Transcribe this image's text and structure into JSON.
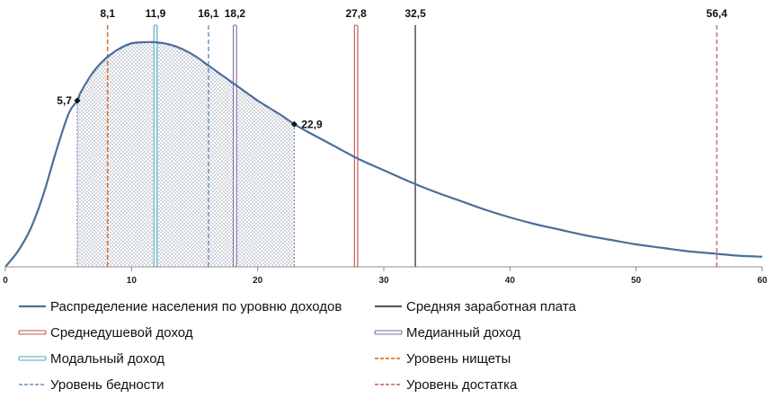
{
  "chart_data": {
    "type": "line",
    "title": "",
    "xlabel": "",
    "ylabel": "",
    "xlim": [
      0,
      60
    ],
    "x_ticks": [
      0,
      10,
      20,
      30,
      40,
      50,
      60
    ],
    "grid": false,
    "legend_placement": "bottom",
    "distribution": {
      "name": "Распределение населения по уровню доходов",
      "color": "#4a6f9b",
      "x": [
        0,
        1,
        2,
        3,
        4,
        5,
        5.7,
        6,
        7,
        8,
        9,
        10,
        11,
        11.9,
        13,
        14,
        15,
        16,
        17,
        18,
        19,
        20,
        21,
        22,
        22.9,
        24,
        26,
        28,
        30,
        32,
        34,
        36,
        38,
        40,
        42,
        44,
        46,
        48,
        50,
        52,
        54,
        56,
        58,
        60
      ],
      "y": [
        0,
        0.07,
        0.17,
        0.32,
        0.51,
        0.68,
        0.74,
        0.78,
        0.87,
        0.93,
        0.97,
        0.995,
        1.0,
        1.0,
        0.99,
        0.97,
        0.94,
        0.9,
        0.86,
        0.82,
        0.78,
        0.74,
        0.705,
        0.67,
        0.635,
        0.6,
        0.54,
        0.48,
        0.43,
        0.38,
        0.335,
        0.295,
        0.255,
        0.22,
        0.19,
        0.165,
        0.14,
        0.12,
        0.1,
        0.085,
        0.07,
        0.06,
        0.05,
        0.045
      ],
      "shaded_range": [
        5.7,
        22.9
      ],
      "marked_points": [
        {
          "x": 5.7,
          "label": "5,7"
        },
        {
          "x": 22.9,
          "label": "22,9"
        }
      ]
    },
    "markers": [
      {
        "name": "Уровень нищеты",
        "value": 8.1,
        "label": "8,1",
        "style": "dashed",
        "color": "#d9742b"
      },
      {
        "name": "Модальный доход",
        "value": 11.9,
        "label": "11,9",
        "style": "double",
        "color": "#4aa8c0"
      },
      {
        "name": "Уровень бедности",
        "value": 16.1,
        "label": "16,1",
        "style": "dashed",
        "color": "#7c9cc4"
      },
      {
        "name": "Медианный доход",
        "value": 18.2,
        "label": "18,2",
        "style": "double",
        "color": "#8064a2"
      },
      {
        "name": "Среднедушевой доход",
        "value": 27.8,
        "label": "27,8",
        "style": "double",
        "color": "#c0504d"
      },
      {
        "name": "Средняя заработная плата",
        "value": 32.5,
        "label": "32,5",
        "style": "solid",
        "color": "#595959"
      },
      {
        "name": "Уровень достатка",
        "value": 56.4,
        "label": "56,4",
        "style": "dashed",
        "color": "#c87870"
      }
    ],
    "legend": [
      {
        "name": "Распределение населения по уровню доходов",
        "style": "solid",
        "color": "#4a6f9b"
      },
      {
        "name": "Средняя заработная плата",
        "style": "solid",
        "color": "#595959"
      },
      {
        "name": "Среднедушевой доход",
        "style": "double",
        "color": "#c0504d"
      },
      {
        "name": "Медианный доход",
        "style": "double",
        "color": "#8064a2"
      },
      {
        "name": "Модальный доход",
        "style": "double",
        "color": "#4aa8c0"
      },
      {
        "name": "Уровень нищеты",
        "style": "dashed",
        "color": "#d9742b"
      },
      {
        "name": "Уровень бедности",
        "style": "dashed",
        "color": "#7c9cc4"
      },
      {
        "name": "Уровень достатка",
        "style": "dashed",
        "color": "#c87870"
      }
    ]
  }
}
